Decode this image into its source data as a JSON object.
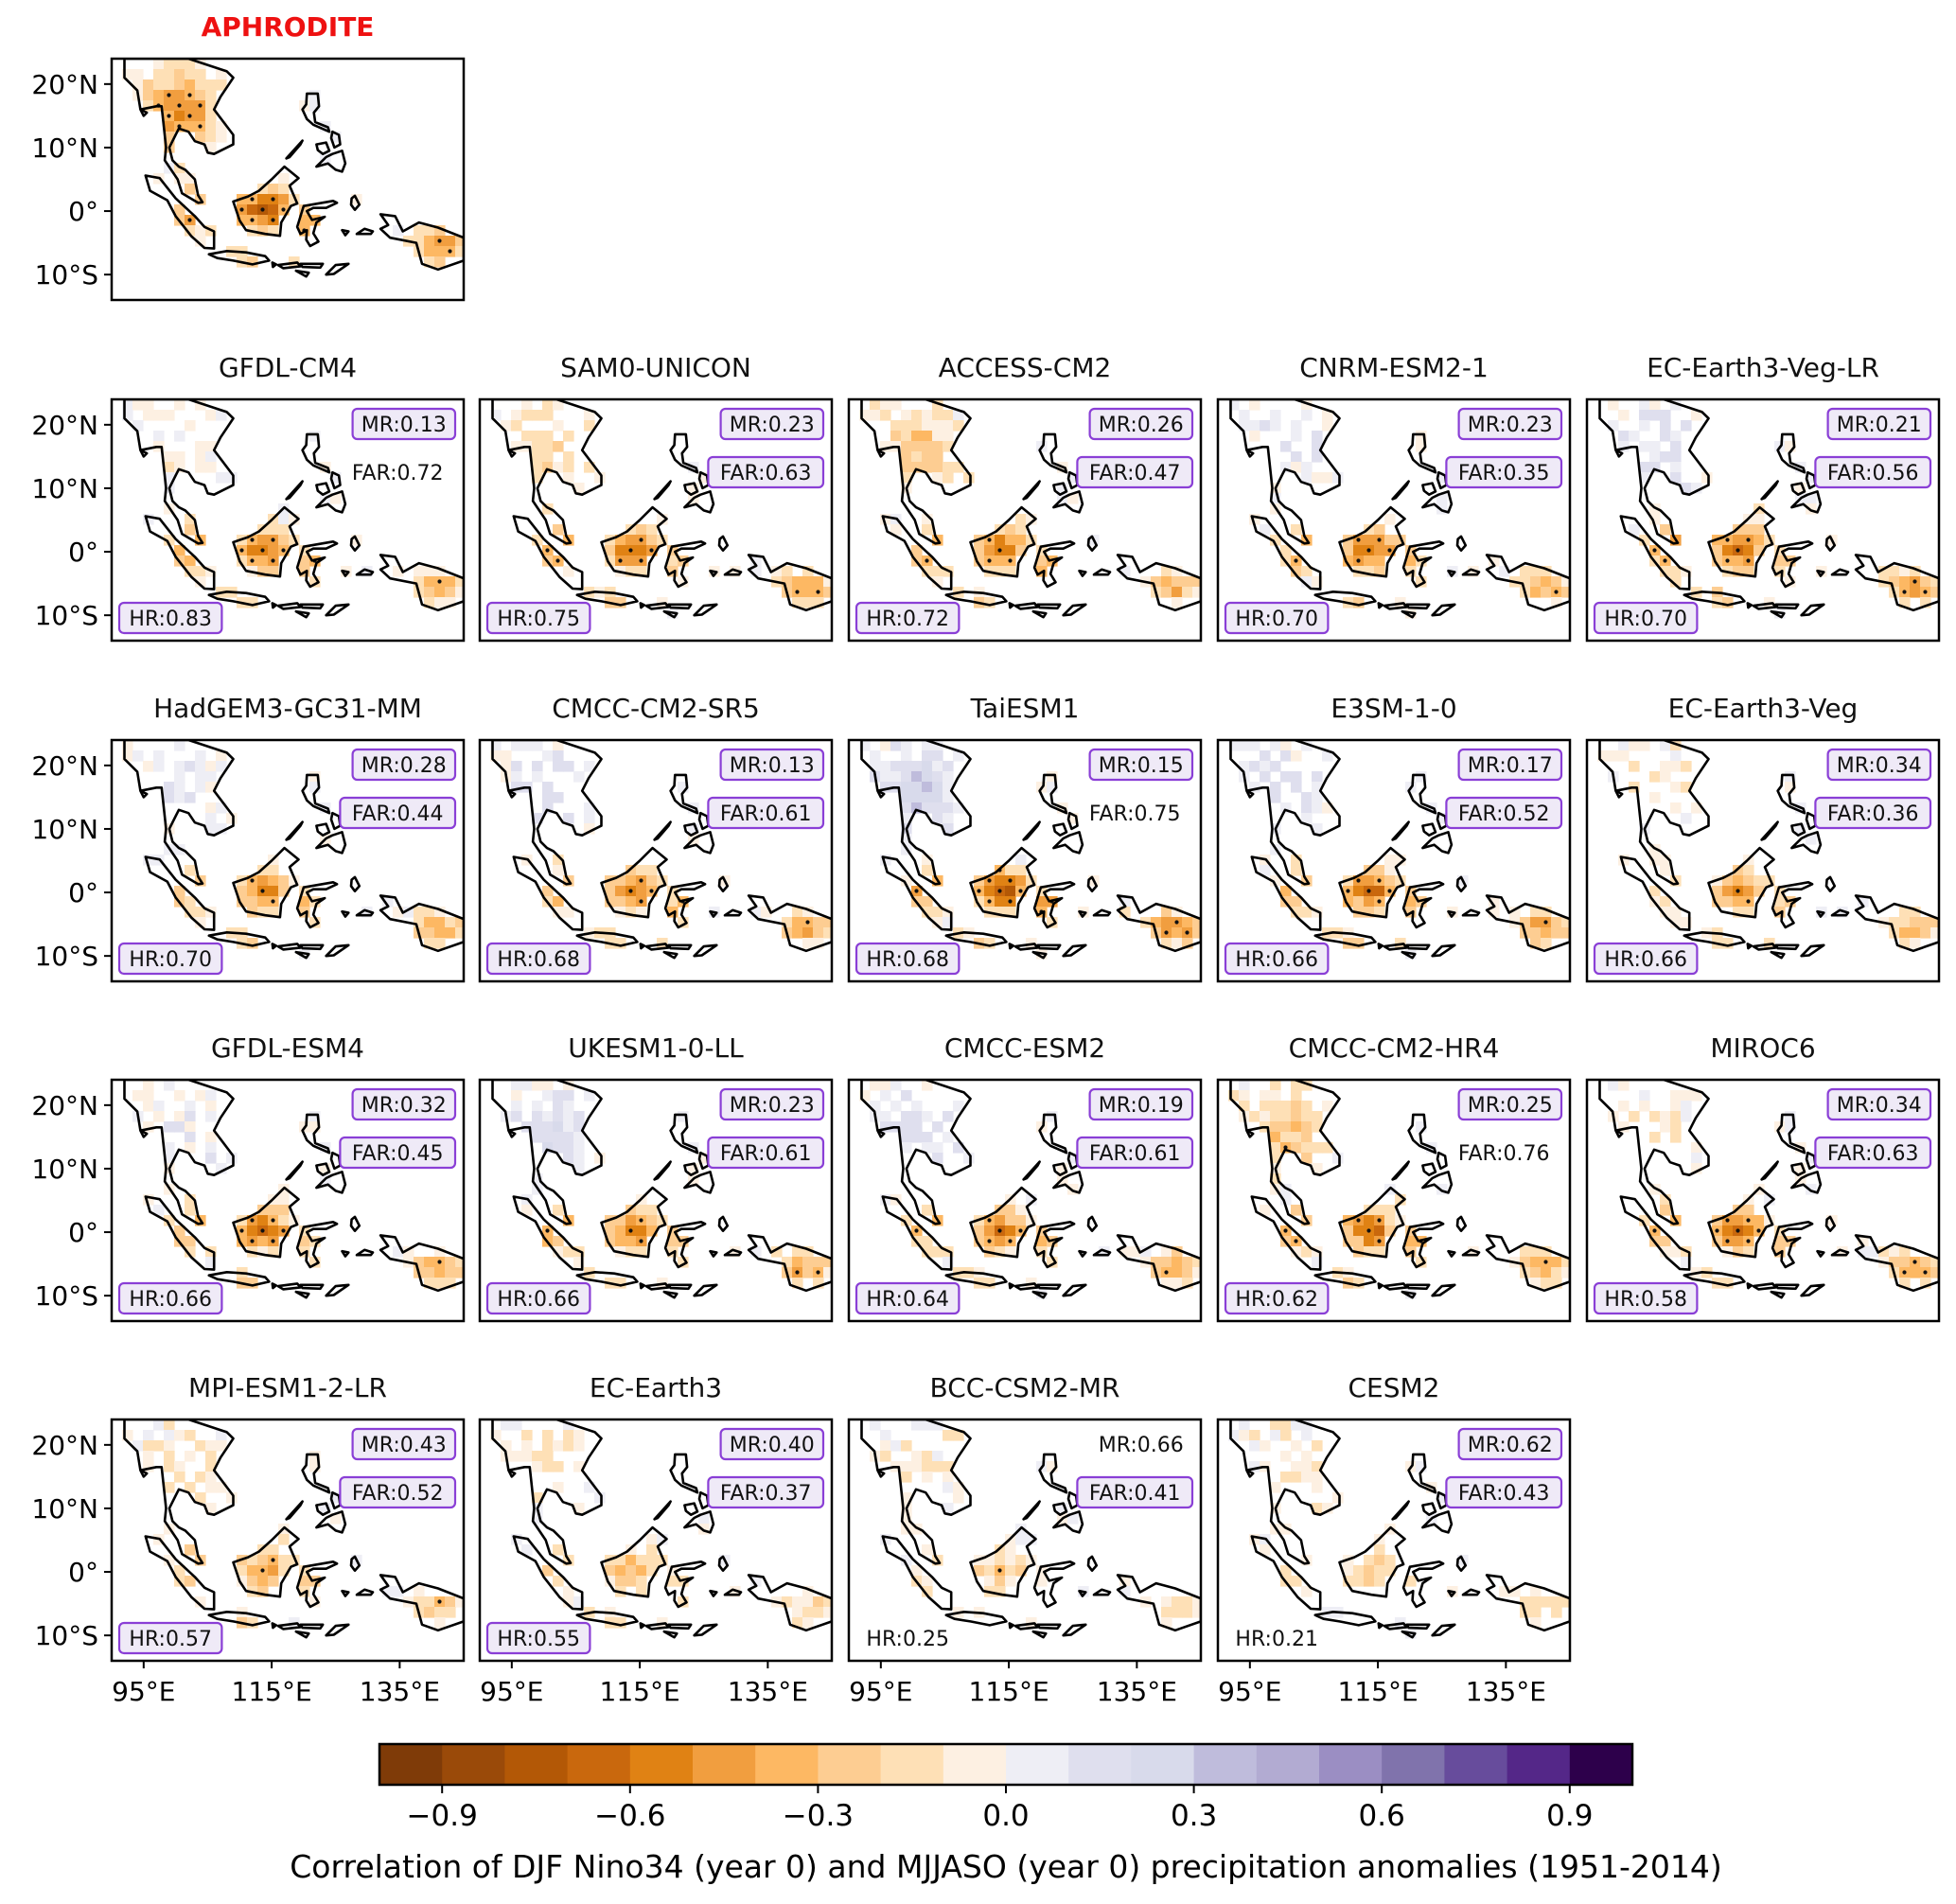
{
  "chart_data": {
    "type": "heatmap",
    "title": "",
    "colorbar": {
      "label": "Correlation of DJF Nino34 (year 0) and MJJASO (year 0) precipitation anomalies (1951-2014)",
      "range": [
        -1.0,
        1.0
      ],
      "bins": 20,
      "ticks": [
        "−0.9",
        "−0.6",
        "−0.3",
        "0.0",
        "0.3",
        "0.6",
        "0.9"
      ],
      "tick_values": [
        -0.9,
        -0.6,
        -0.3,
        0.0,
        0.3,
        0.6,
        0.9
      ],
      "colors": [
        "#7f3b08",
        "#9a4a09",
        "#b35806",
        "#c9680d",
        "#e08214",
        "#f19e3f",
        "#fdb863",
        "#fdcd92",
        "#fee0b6",
        "#fdf0e2",
        "#eeeef5",
        "#dfdfee",
        "#d8daeb",
        "#bfbcdc",
        "#b2abd2",
        "#9b8ec3",
        "#8073ac",
        "#674c9c",
        "#542788",
        "#2d004b"
      ]
    },
    "x_axis": {
      "ticks": [
        "95°E",
        "115°E",
        "135°E"
      ],
      "tick_values": [
        95,
        115,
        135
      ],
      "range": [
        90,
        145
      ]
    },
    "y_axis": {
      "ticks": [
        "20°N",
        "10°N",
        "0°",
        "10°S"
      ],
      "tick_values": [
        20,
        10,
        0,
        -10
      ],
      "range": [
        -14,
        24
      ]
    },
    "panels": [
      {
        "name": "APHRODITE",
        "observed": true
      },
      {
        "name": "GFDL-CM4",
        "MR": "MR:0.13",
        "FAR": "FAR:0.72",
        "HR": "HR:0.83",
        "mr_box": true,
        "far_box": false,
        "hr_box": true
      },
      {
        "name": "SAM0-UNICON",
        "MR": "MR:0.23",
        "FAR": "FAR:0.63",
        "HR": "HR:0.75",
        "mr_box": true,
        "far_box": true,
        "hr_box": true
      },
      {
        "name": "ACCESS-CM2",
        "MR": "MR:0.26",
        "FAR": "FAR:0.47",
        "HR": "HR:0.72",
        "mr_box": true,
        "far_box": true,
        "hr_box": true
      },
      {
        "name": "CNRM-ESM2-1",
        "MR": "MR:0.23",
        "FAR": "FAR:0.35",
        "HR": "HR:0.70",
        "mr_box": true,
        "far_box": true,
        "hr_box": true
      },
      {
        "name": "EC-Earth3-Veg-LR",
        "MR": "MR:0.21",
        "FAR": "FAR:0.56",
        "HR": "HR:0.70",
        "mr_box": true,
        "far_box": true,
        "hr_box": true
      },
      {
        "name": "HadGEM3-GC31-MM",
        "MR": "MR:0.28",
        "FAR": "FAR:0.44",
        "HR": "HR:0.70",
        "mr_box": true,
        "far_box": true,
        "hr_box": true
      },
      {
        "name": "CMCC-CM2-SR5",
        "MR": "MR:0.13",
        "FAR": "FAR:0.61",
        "HR": "HR:0.68",
        "mr_box": true,
        "far_box": true,
        "hr_box": true
      },
      {
        "name": "TaiESM1",
        "MR": "MR:0.15",
        "FAR": "FAR:0.75",
        "HR": "HR:0.68",
        "mr_box": true,
        "far_box": false,
        "hr_box": true
      },
      {
        "name": "E3SM-1-0",
        "MR": "MR:0.17",
        "FAR": "FAR:0.52",
        "HR": "HR:0.66",
        "mr_box": true,
        "far_box": true,
        "hr_box": true
      },
      {
        "name": "EC-Earth3-Veg",
        "MR": "MR:0.34",
        "FAR": "FAR:0.36",
        "HR": "HR:0.66",
        "mr_box": true,
        "far_box": true,
        "hr_box": true
      },
      {
        "name": "GFDL-ESM4",
        "MR": "MR:0.32",
        "FAR": "FAR:0.45",
        "HR": "HR:0.66",
        "mr_box": true,
        "far_box": true,
        "hr_box": true
      },
      {
        "name": "UKESM1-0-LL",
        "MR": "MR:0.23",
        "FAR": "FAR:0.61",
        "HR": "HR:0.66",
        "mr_box": true,
        "far_box": true,
        "hr_box": true
      },
      {
        "name": "CMCC-ESM2",
        "MR": "MR:0.19",
        "FAR": "FAR:0.61",
        "HR": "HR:0.64",
        "mr_box": true,
        "far_box": true,
        "hr_box": true
      },
      {
        "name": "CMCC-CM2-HR4",
        "MR": "MR:0.25",
        "FAR": "FAR:0.76",
        "HR": "HR:0.62",
        "mr_box": true,
        "far_box": false,
        "hr_box": true
      },
      {
        "name": "MIROC6",
        "MR": "MR:0.34",
        "FAR": "FAR:0.63",
        "HR": "HR:0.58",
        "mr_box": true,
        "far_box": true,
        "hr_box": true
      },
      {
        "name": "MPI-ESM1-2-LR",
        "MR": "MR:0.43",
        "FAR": "FAR:0.52",
        "HR": "HR:0.57",
        "mr_box": true,
        "far_box": true,
        "hr_box": true
      },
      {
        "name": "EC-Earth3",
        "MR": "MR:0.40",
        "FAR": "FAR:0.37",
        "HR": "HR:0.55",
        "mr_box": true,
        "far_box": true,
        "hr_box": true
      },
      {
        "name": "BCC-CSM2-MR",
        "MR": "MR:0.66",
        "FAR": "FAR:0.41",
        "HR": "HR:0.25",
        "mr_box": false,
        "far_box": true,
        "hr_box": false
      },
      {
        "name": "CESM2",
        "MR": "MR:0.62",
        "FAR": "FAR:0.43",
        "HR": "HR:0.21",
        "mr_box": true,
        "far_box": true,
        "hr_box": false
      }
    ],
    "legend": "none",
    "grid": false,
    "observed_title_color": "#ee1111",
    "box_edge_color": "#8a3fd6",
    "box_face_color": "#efeaf7"
  }
}
